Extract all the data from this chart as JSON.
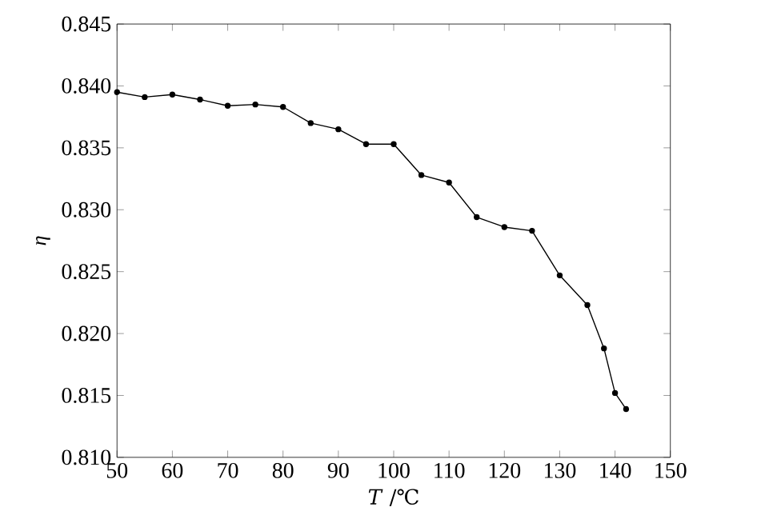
{
  "chart_data": {
    "type": "line",
    "xlabel": "*T* /℃",
    "ylabel": "*η*",
    "x": [
      50,
      55,
      60,
      65,
      70,
      75,
      80,
      85,
      90,
      95,
      100,
      105,
      110,
      115,
      120,
      125,
      130,
      135,
      138,
      140,
      142
    ],
    "series": [
      {
        "color": "#000000",
        "values": [
          0.8395,
          0.8391,
          0.8393,
          0.8389,
          0.8384,
          0.8385,
          0.8383,
          0.837,
          0.8365,
          0.8353,
          0.8353,
          0.8328,
          0.8322,
          0.8294,
          0.8286,
          0.8283,
          0.8247,
          0.8223,
          0.8188,
          0.8152,
          0.8139
        ]
      }
    ],
    "xlim": [
      50,
      150
    ],
    "xticks": [
      50,
      60,
      70,
      80,
      90,
      100,
      110,
      120,
      130,
      140,
      150
    ],
    "ylim": [
      0.81,
      0.845
    ],
    "yticks": [
      {
        "value": 0.81,
        "label": "0.810"
      },
      0.815,
      {
        "value": 0.82,
        "label": "0.820"
      },
      0.825,
      {
        "value": 0.83,
        "label": "0.830"
      },
      0.835,
      {
        "value": 0.84,
        "label": "0.840"
      },
      0.845
    ],
    "marker": "circle",
    "line_style": "solid",
    "grid": false
  }
}
